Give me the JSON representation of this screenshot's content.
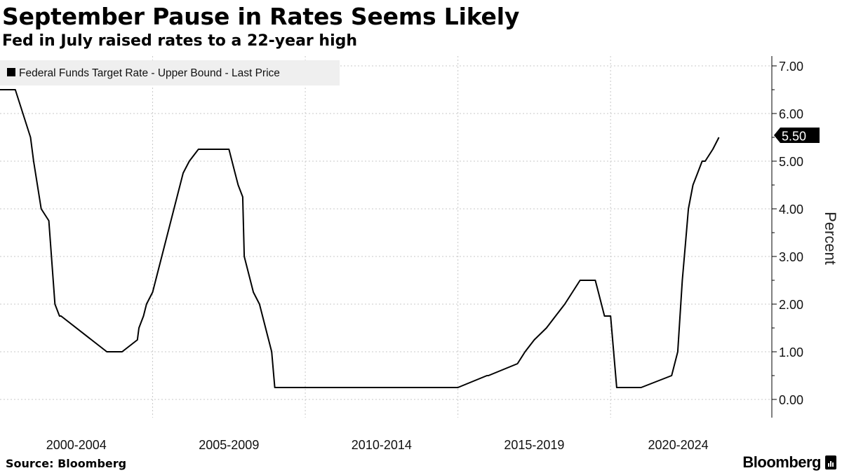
{
  "header": {
    "title": "September Pause in Rates Seems Likely",
    "subtitle": "Fed in July raised rates to a 22-year high"
  },
  "footer": {
    "source": "Source: Bloomberg",
    "brand": "Bloomberg"
  },
  "chart_data": {
    "type": "line",
    "title": "September Pause in Rates Seems Likely",
    "subtitle": "Fed in July raised rates to a 22-year high",
    "ylabel": "Percent",
    "ylim": [
      -0.35,
      7.1
    ],
    "xlim": [
      2000.0,
      2024.8
    ],
    "yticks": [
      "7.00",
      "6.00",
      "5.00",
      "4.00",
      "3.00",
      "2.00",
      "1.00",
      "0.00"
    ],
    "ytick_values": [
      7,
      6,
      5,
      4,
      3,
      2,
      1,
      0
    ],
    "xtick_labels": [
      "2000-2004",
      "2005-2009",
      "2010-2014",
      "2015-2019",
      "2020-2024"
    ],
    "xtick_groups": [
      [
        2000,
        2005
      ],
      [
        2005,
        2010
      ],
      [
        2010,
        2015
      ],
      [
        2015,
        2020
      ],
      [
        2020,
        2025
      ]
    ],
    "grid": true,
    "legend_position": "top-left",
    "last_value_label": "5.50",
    "line_color": "#000000",
    "series": [
      {
        "name": "Federal Funds Target Rate - Upper Bound - Last Price",
        "x": [
          2000.0,
          2000.5,
          2001.0,
          2001.1,
          2001.35,
          2001.6,
          2001.8,
          2001.95,
          2002.0,
          2003.0,
          2003.5,
          2004.0,
          2004.5,
          2004.55,
          2004.7,
          2004.8,
          2005.0,
          2005.2,
          2005.4,
          2005.6,
          2005.8,
          2006.0,
          2006.2,
          2006.5,
          2007.5,
          2007.7,
          2007.8,
          2007.95,
          2008.0,
          2008.3,
          2008.5,
          2008.9,
          2009.0,
          2010.0,
          2011.0,
          2012.0,
          2013.0,
          2014.0,
          2015.0,
          2015.95,
          2016.0,
          2016.95,
          2017.2,
          2017.5,
          2017.9,
          2018.2,
          2018.5,
          2018.75,
          2019.0,
          2019.5,
          2019.6,
          2019.8,
          2020.0,
          2020.2,
          2021.0,
          2022.0,
          2022.2,
          2022.35,
          2022.45,
          2022.55,
          2022.7,
          2022.85,
          2023.0,
          2023.1,
          2023.35,
          2023.55
        ],
        "y": [
          6.5,
          6.5,
          5.5,
          5.0,
          4.0,
          3.75,
          2.0,
          1.75,
          1.75,
          1.25,
          1.0,
          1.0,
          1.25,
          1.5,
          1.75,
          2.0,
          2.25,
          2.75,
          3.25,
          3.75,
          4.25,
          4.75,
          5.0,
          5.25,
          5.25,
          4.75,
          4.5,
          4.25,
          3.0,
          2.25,
          2.0,
          1.0,
          0.25,
          0.25,
          0.25,
          0.25,
          0.25,
          0.25,
          0.25,
          0.5,
          0.5,
          0.75,
          1.0,
          1.25,
          1.5,
          1.75,
          2.0,
          2.25,
          2.5,
          2.5,
          2.25,
          1.75,
          1.75,
          0.25,
          0.25,
          0.5,
          1.0,
          2.5,
          3.25,
          4.0,
          4.5,
          4.75,
          5.0,
          5.0,
          5.25,
          5.5
        ]
      }
    ]
  }
}
